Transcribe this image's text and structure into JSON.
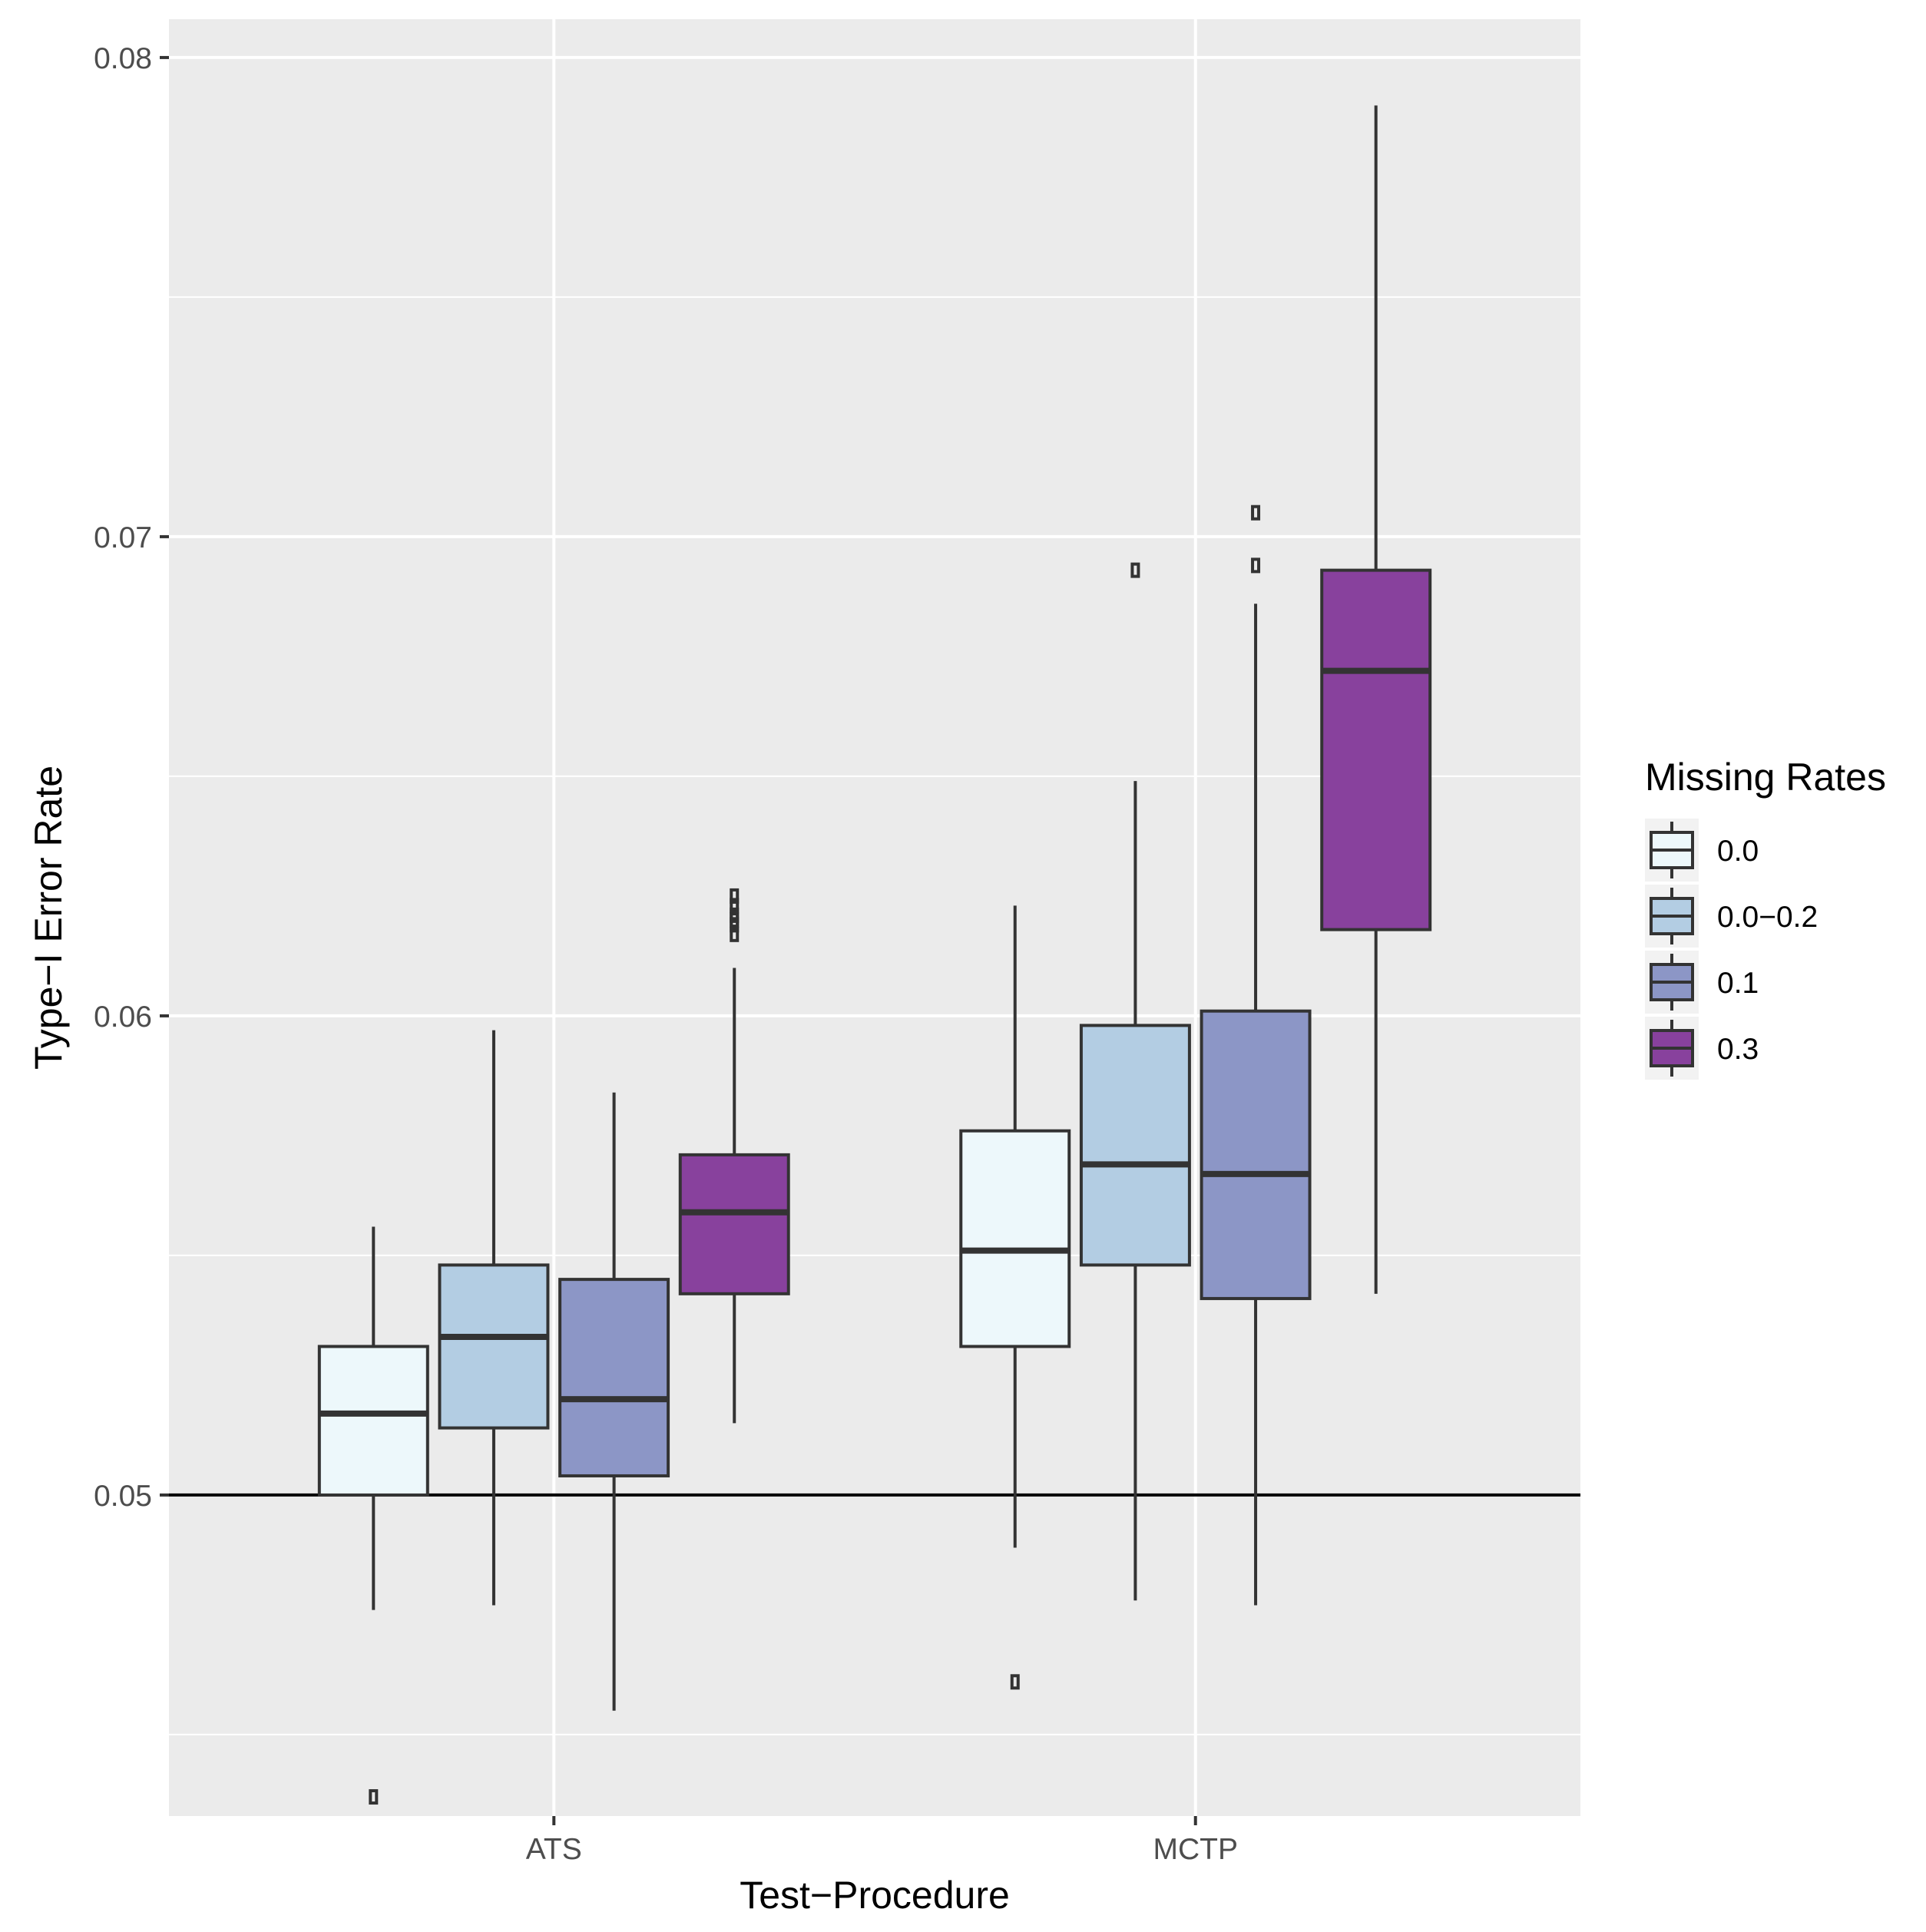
{
  "chart_data": {
    "type": "boxplot",
    "title": "",
    "xlabel": "Test−Procedure",
    "ylabel": "Type−I Error Rate",
    "categories": [
      "ATS",
      "MCTP"
    ],
    "ylim": [
      0.0433,
      0.0808
    ],
    "yticks": [
      0.05,
      0.06,
      0.07,
      0.08
    ],
    "ytick_labels": [
      "0.05",
      "0.06",
      "0.07",
      "0.08"
    ],
    "reference_line": 0.05,
    "grid": true,
    "legend": {
      "title": "Missing Rates",
      "position": "right"
    },
    "series": [
      {
        "name": "0.0",
        "color": "#edf8fb",
        "boxes": [
          {
            "category": "ATS",
            "whisker_low": 0.0476,
            "q1": 0.05,
            "median": 0.0517,
            "q3": 0.0531,
            "whisker_high": 0.0556,
            "outliers": [
              0.0437
            ]
          },
          {
            "category": "MCTP",
            "whisker_low": 0.0489,
            "q1": 0.0531,
            "median": 0.0551,
            "q3": 0.0576,
            "whisker_high": 0.0623,
            "outliers": [
              0.0461
            ]
          }
        ]
      },
      {
        "name": "0.0−0.2",
        "color": "#b3cde3",
        "boxes": [
          {
            "category": "ATS",
            "whisker_low": 0.0477,
            "q1": 0.0514,
            "median": 0.0533,
            "q3": 0.0548,
            "whisker_high": 0.0597,
            "outliers": []
          },
          {
            "category": "MCTP",
            "whisker_low": 0.0478,
            "q1": 0.0548,
            "median": 0.0569,
            "q3": 0.0598,
            "whisker_high": 0.0649,
            "outliers": [
              0.0693
            ]
          }
        ]
      },
      {
        "name": "0.1",
        "color": "#8c96c6",
        "boxes": [
          {
            "category": "ATS",
            "whisker_low": 0.0455,
            "q1": 0.0504,
            "median": 0.052,
            "q3": 0.0545,
            "whisker_high": 0.0584,
            "outliers": []
          },
          {
            "category": "MCTP",
            "whisker_low": 0.0477,
            "q1": 0.0541,
            "median": 0.0567,
            "q3": 0.0601,
            "whisker_high": 0.0686,
            "outliers": [
              0.0694,
              0.0705
            ]
          }
        ]
      },
      {
        "name": "0.3",
        "color": "#88419d",
        "boxes": [
          {
            "category": "ATS",
            "whisker_low": 0.0515,
            "q1": 0.0542,
            "median": 0.0559,
            "q3": 0.0571,
            "whisker_high": 0.061,
            "outliers": [
              0.0617,
              0.0619,
              0.062,
              0.0621,
              0.0623,
              0.0625
            ]
          },
          {
            "category": "MCTP",
            "whisker_low": 0.0542,
            "q1": 0.0618,
            "median": 0.0672,
            "q3": 0.0693,
            "whisker_high": 0.079,
            "outliers": []
          }
        ]
      }
    ]
  }
}
